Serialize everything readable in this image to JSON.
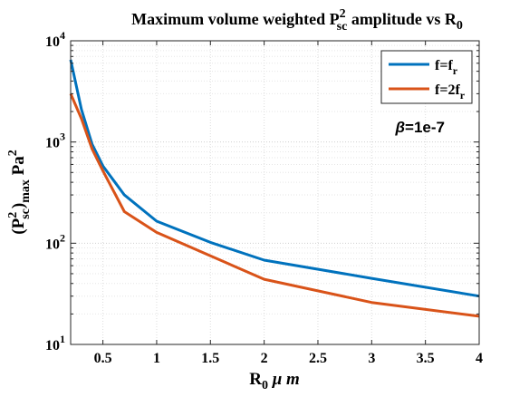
{
  "chart_data": {
    "type": "line",
    "title": {
      "main": "Maximum volume weighted P",
      "sup": "2",
      "sub": "sc",
      "rest": " amplitude vs R",
      "rest_sub": "0"
    },
    "xlabel": {
      "main": "R",
      "sub": "0",
      "rest": " μ m"
    },
    "ylabel": {
      "p1": "(P",
      "sup": "2",
      "sub": "sc",
      "p2": ")",
      "sub2": "max",
      "p3": " Pa",
      "sup2": "2"
    },
    "xlim": [
      0.2,
      4
    ],
    "ylim": [
      10,
      10000
    ],
    "yscale": "log",
    "grid": true,
    "legend_position": "top-right",
    "x_ticks": [
      0.5,
      1,
      1.5,
      2,
      2.5,
      3,
      3.5,
      4
    ],
    "x_tick_labels": [
      "0.5",
      "1",
      "1.5",
      "2",
      "2.5",
      "3",
      "3.5",
      "4"
    ],
    "y_ticks": [
      10,
      100,
      1000,
      10000
    ],
    "y_tick_labels": [
      {
        "base": "10",
        "exp": "1"
      },
      {
        "base": "10",
        "exp": "2"
      },
      {
        "base": "10",
        "exp": "3"
      },
      {
        "base": "10",
        "exp": "4"
      }
    ],
    "annotation": {
      "symbol": "β",
      "text": "=1e-7",
      "x": 3.45,
      "y": 1250
    },
    "series": [
      {
        "name": {
          "main": "f=f",
          "sub": "r"
        },
        "color": "#0072BD",
        "x": [
          0.2,
          0.3,
          0.4,
          0.5,
          0.7,
          1,
          1.5,
          2,
          3,
          4
        ],
        "y": [
          6500,
          2100,
          950,
          580,
          300,
          165,
          102,
          68,
          45,
          30
        ]
      },
      {
        "name": {
          "main": "f=2f",
          "sub": "r"
        },
        "color": "#D95319",
        "x": [
          0.2,
          0.3,
          0.4,
          0.5,
          0.7,
          1,
          1.5,
          2,
          3,
          4
        ],
        "y": [
          3000,
          1700,
          850,
          520,
          205,
          128,
          75,
          44,
          26,
          19
        ]
      }
    ]
  }
}
